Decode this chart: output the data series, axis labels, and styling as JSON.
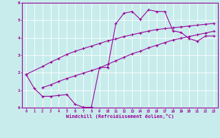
{
  "xlabel": "Windchill (Refroidissement éolien,°C)",
  "bg_color": "#c8ecec",
  "line_color": "#990099",
  "grid_color": "#ffffff",
  "xlim": [
    -0.5,
    23.5
  ],
  "ylim": [
    0,
    6
  ],
  "xticks": [
    0,
    1,
    2,
    3,
    4,
    5,
    6,
    7,
    8,
    9,
    10,
    11,
    12,
    13,
    14,
    15,
    16,
    17,
    18,
    19,
    20,
    21,
    22,
    23
  ],
  "yticks": [
    0,
    1,
    2,
    3,
    4,
    5,
    6
  ],
  "line1_x": [
    0,
    1,
    2,
    3,
    4,
    5,
    6,
    7,
    8,
    9,
    10,
    11,
    12,
    13,
    14,
    15,
    16,
    17,
    18,
    19,
    20,
    21,
    22,
    23
  ],
  "line1_y": [
    1.9,
    1.1,
    0.65,
    0.65,
    0.7,
    0.75,
    0.2,
    0.02,
    0.02,
    2.3,
    2.3,
    4.8,
    5.4,
    5.5,
    5.05,
    5.6,
    5.5,
    5.5,
    4.4,
    4.3,
    3.95,
    3.8,
    4.1,
    4.1
  ],
  "line2_x": [
    0,
    2,
    3,
    4,
    5,
    6,
    7,
    8,
    9,
    10,
    11,
    12,
    13,
    14,
    15,
    16,
    17,
    18,
    19,
    20,
    21,
    22,
    23
  ],
  "line2_y": [
    1.9,
    2.35,
    2.6,
    2.82,
    3.05,
    3.22,
    3.38,
    3.52,
    3.67,
    3.82,
    3.93,
    4.07,
    4.17,
    4.28,
    4.38,
    4.47,
    4.52,
    4.57,
    4.62,
    4.67,
    4.72,
    4.77,
    4.82
  ],
  "line3_x": [
    2,
    3,
    4,
    5,
    6,
    7,
    8,
    9,
    10,
    11,
    12,
    13,
    14,
    15,
    16,
    17,
    18,
    19,
    20,
    21,
    22,
    23
  ],
  "line3_y": [
    1.15,
    1.3,
    1.5,
    1.67,
    1.82,
    1.97,
    2.12,
    2.27,
    2.48,
    2.68,
    2.88,
    3.08,
    3.23,
    3.42,
    3.57,
    3.72,
    3.87,
    3.97,
    4.07,
    4.17,
    4.27,
    4.37
  ]
}
